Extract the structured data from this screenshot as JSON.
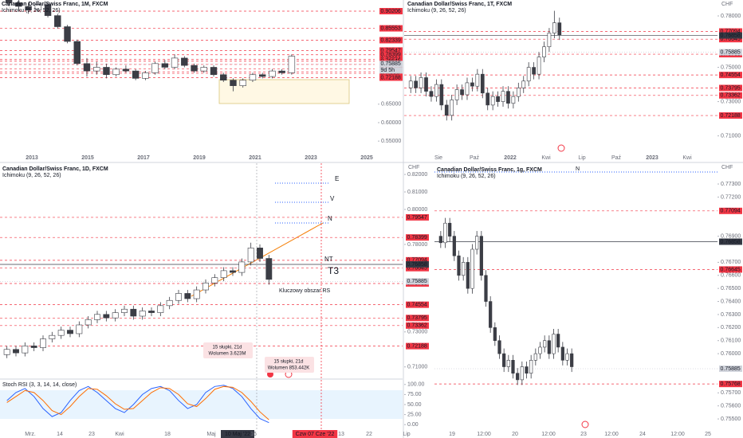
{
  "chart_data": [
    {
      "type": "candlestick",
      "title": "Canadian Dollar/Swiss Franc, 1M, FXCM",
      "indicator": "Ichimoku (9, 26, 52, 26)",
      "open": [
        0.935,
        0.925,
        0.915,
        0.905,
        0.92,
        0.89,
        0.86,
        0.82,
        0.76,
        0.74,
        0.75,
        0.73,
        0.745,
        0.74,
        0.72,
        0.735,
        0.76,
        0.75,
        0.775,
        0.755,
        0.74,
        0.75,
        0.73,
        0.715,
        0.7,
        0.715,
        0.73,
        0.725,
        0.74,
        0.735
      ],
      "high": [
        0.945,
        0.935,
        0.925,
        0.93,
        0.925,
        0.895,
        0.865,
        0.825,
        0.775,
        0.765,
        0.76,
        0.75,
        0.755,
        0.745,
        0.74,
        0.765,
        0.77,
        0.785,
        0.78,
        0.76,
        0.755,
        0.755,
        0.735,
        0.72,
        0.72,
        0.735,
        0.735,
        0.745,
        0.745,
        0.785
      ],
      "low": [
        0.915,
        0.905,
        0.895,
        0.9,
        0.885,
        0.855,
        0.815,
        0.755,
        0.725,
        0.73,
        0.72,
        0.725,
        0.735,
        0.715,
        0.715,
        0.73,
        0.745,
        0.745,
        0.75,
        0.735,
        0.735,
        0.725,
        0.71,
        0.685,
        0.695,
        0.71,
        0.72,
        0.72,
        0.73,
        0.73
      ],
      "close": [
        0.925,
        0.915,
        0.905,
        0.92,
        0.89,
        0.86,
        0.82,
        0.76,
        0.74,
        0.75,
        0.73,
        0.745,
        0.74,
        0.72,
        0.735,
        0.76,
        0.75,
        0.775,
        0.755,
        0.74,
        0.75,
        0.73,
        0.715,
        0.7,
        0.715,
        0.73,
        0.725,
        0.74,
        0.735,
        0.78
      ],
      "up_color": "#ffffff",
      "down_color": "#3b3d45",
      "ylim": [
        0.5223,
        0.9323
      ],
      "yticks": [
        {
          "value": 0.65,
          "label": "0.65000"
        },
        {
          "value": 0.6,
          "label": "0.60000"
        },
        {
          "value": 0.55,
          "label": "0.55000"
        }
      ],
      "levels": [
        0.90206,
        0.85553,
        0.82339,
        0.79547,
        0.78399,
        0.77094,
        0.76645,
        0.75768,
        0.74554,
        0.73795,
        0.73362,
        0.72188
      ],
      "level_color": "#f23645",
      "last_price": 0.75885,
      "last_color": "#d1d4dc",
      "countdown": "9d 5h",
      "x_labels": [
        "2013",
        "2015",
        "2017",
        "2019",
        "2021",
        "2023",
        "2025"
      ]
    },
    {
      "type": "candlestick",
      "title": "Canadian Dollar/Swiss Franc, 1T, FXCM",
      "indicator": "Ichimoku (9, 26, 52, 26)",
      "currency": "CHF",
      "open": [
        0.738,
        0.742,
        0.738,
        0.744,
        0.736,
        0.733,
        0.74,
        0.728,
        0.722,
        0.731,
        0.737,
        0.734,
        0.741,
        0.739,
        0.746,
        0.735,
        0.728,
        0.733,
        0.73,
        0.736,
        0.729,
        0.733,
        0.738,
        0.742,
        0.75,
        0.746,
        0.756,
        0.762,
        0.77,
        0.776
      ],
      "high": [
        0.745,
        0.745,
        0.747,
        0.747,
        0.739,
        0.743,
        0.743,
        0.731,
        0.734,
        0.74,
        0.74,
        0.744,
        0.744,
        0.749,
        0.749,
        0.738,
        0.736,
        0.736,
        0.739,
        0.739,
        0.736,
        0.741,
        0.745,
        0.753,
        0.753,
        0.759,
        0.765,
        0.773,
        0.783,
        0.779
      ],
      "low": [
        0.735,
        0.735,
        0.735,
        0.733,
        0.73,
        0.73,
        0.725,
        0.719,
        0.719,
        0.728,
        0.731,
        0.731,
        0.736,
        0.736,
        0.732,
        0.725,
        0.725,
        0.727,
        0.727,
        0.726,
        0.726,
        0.73,
        0.735,
        0.739,
        0.743,
        0.743,
        0.753,
        0.759,
        0.767,
        0.766
      ],
      "close": [
        0.742,
        0.738,
        0.744,
        0.736,
        0.733,
        0.74,
        0.728,
        0.722,
        0.731,
        0.737,
        0.734,
        0.741,
        0.739,
        0.746,
        0.735,
        0.728,
        0.733,
        0.73,
        0.736,
        0.729,
        0.733,
        0.738,
        0.742,
        0.75,
        0.746,
        0.756,
        0.762,
        0.77,
        0.776,
        0.769
      ],
      "up_color": "#ffffff",
      "down_color": "#3b3d45",
      "ylim": [
        0.701,
        0.7893
      ],
      "yticks": [
        {
          "value": 0.78,
          "label": "0.78000"
        },
        {
          "value": 0.75,
          "label": "0.75000"
        },
        {
          "value": 0.73,
          "label": "0.73000"
        },
        {
          "value": 0.71,
          "label": "0.71000"
        }
      ],
      "levels": [
        0.77094,
        0.76645,
        0.75768,
        0.74554,
        0.73795,
        0.73362,
        0.72188
      ],
      "level_color": "#f23645",
      "mark_price": 0.76858,
      "mark_color": "#363a45",
      "last_price": 0.75885,
      "last_color": "#d1d4dc",
      "x_labels": [
        "Sie",
        "Paź",
        "2022",
        "Kwi",
        "Lip",
        "Paź",
        "2023",
        "Kwi"
      ]
    },
    {
      "type": "candlestick",
      "title": "Canadian Dollar/Swiss Franc, 1D, FXCM",
      "indicator": "Ichimoku (9, 26, 52, 26)",
      "currency": "CHF",
      "open": [
        0.717,
        0.72,
        0.718,
        0.722,
        0.721,
        0.726,
        0.728,
        0.731,
        0.729,
        0.734,
        0.737,
        0.74,
        0.738,
        0.741,
        0.743,
        0.739,
        0.742,
        0.741,
        0.745,
        0.748,
        0.752,
        0.749,
        0.754,
        0.758,
        0.761,
        0.765,
        0.764,
        0.77,
        0.778,
        0.772
      ],
      "high": [
        0.722,
        0.722,
        0.724,
        0.724,
        0.728,
        0.73,
        0.733,
        0.733,
        0.736,
        0.739,
        0.742,
        0.742,
        0.743,
        0.745,
        0.745,
        0.744,
        0.744,
        0.747,
        0.75,
        0.754,
        0.754,
        0.756,
        0.76,
        0.763,
        0.767,
        0.767,
        0.772,
        0.781,
        0.78,
        0.774
      ],
      "low": [
        0.715,
        0.716,
        0.716,
        0.719,
        0.719,
        0.724,
        0.726,
        0.727,
        0.727,
        0.732,
        0.735,
        0.736,
        0.736,
        0.739,
        0.737,
        0.737,
        0.739,
        0.739,
        0.743,
        0.746,
        0.747,
        0.747,
        0.752,
        0.756,
        0.759,
        0.762,
        0.762,
        0.768,
        0.77,
        0.757
      ],
      "close": [
        0.72,
        0.718,
        0.722,
        0.721,
        0.726,
        0.728,
        0.731,
        0.729,
        0.734,
        0.737,
        0.74,
        0.738,
        0.741,
        0.743,
        0.739,
        0.742,
        0.741,
        0.745,
        0.748,
        0.752,
        0.749,
        0.754,
        0.758,
        0.761,
        0.765,
        0.764,
        0.77,
        0.778,
        0.772,
        0.76
      ],
      "up_color": "#ffffff",
      "down_color": "#3b3d45",
      "ylim": [
        0.7035,
        0.8264
      ],
      "yticks": [
        {
          "value": 0.82,
          "label": "0.82000"
        },
        {
          "value": 0.81,
          "label": "0.81000"
        },
        {
          "value": 0.8,
          "label": "0.80000"
        },
        {
          "value": 0.78,
          "label": "0.78000"
        },
        {
          "value": 0.73,
          "label": "0.73000"
        },
        {
          "value": 0.71,
          "label": "0.71000"
        }
      ],
      "levels": [
        0.79547,
        0.78399,
        0.77094,
        0.76645,
        0.75768,
        0.74554,
        0.73795,
        0.73362,
        0.72188
      ],
      "level_color": "#f23645",
      "mark_price": 0.76858,
      "mark_color": "#363a45",
      "last_price": 0.75885,
      "last_color": "#d1d4dc",
      "x_labels": [
        "Mrz.",
        "14",
        "23",
        "Kwi",
        "18",
        "Maj",
        "10 Maj '22",
        "16",
        "Czw 07 Cze '22",
        "13",
        "22",
        "Lip"
      ],
      "annotations": [
        {
          "text": "E",
          "color": "#2962ff"
        },
        {
          "text": "V",
          "color": "#2962ff"
        },
        {
          "text": "N",
          "color": "#2962ff"
        },
        {
          "text": "NT",
          "color": "#2962ff"
        },
        {
          "text": "T3",
          "color": "#f23645"
        },
        {
          "text": "Kluczowy obszar RS",
          "color": "#f23645"
        }
      ],
      "notes": [
        [
          "15 słupki, 21d",
          "Wolumen 3.623M"
        ],
        [
          "15 słupki, 21d",
          "Wolumen 853.442K"
        ]
      ],
      "stoch": {
        "title": "Stoch RSI (3, 3, 14, 14, close)",
        "ylim": [
          -13.5,
          111.5
        ],
        "yticks": [
          {
            "value": 100,
            "label": "100.00"
          },
          {
            "value": 75,
            "label": "75.00"
          },
          {
            "value": 50,
            "label": "50.00"
          },
          {
            "value": 25,
            "label": "25.00"
          },
          {
            "value": 0,
            "label": "0.00"
          }
        ],
        "series": [
          {
            "color": "#2962ff",
            "values": [
              60,
              80,
              90,
              70,
              40,
              20,
              30,
              60,
              85,
              95,
              80,
              60,
              40,
              30,
              50,
              75,
              90,
              95,
              85,
              60,
              40,
              50,
              80,
              95,
              98,
              90,
              70,
              40,
              15,
              5
            ]
          },
          {
            "color": "#ff6d00",
            "values": [
              55,
              70,
              85,
              80,
              60,
              35,
              25,
              45,
              70,
              90,
              88,
              72,
              52,
              38,
              40,
              60,
              80,
              92,
              90,
              75,
              52,
              45,
              65,
              88,
              95,
              93,
              80,
              58,
              32,
              12
            ]
          }
        ]
      }
    },
    {
      "type": "candlestick",
      "title": "Canadian Dollar/Swiss Franc, 1g, FXCM",
      "indicator": "Ichimoku (9, 26, 52, 26)",
      "currency": "CHF",
      "open": [
        0.769,
        0.7685,
        0.77,
        0.769,
        0.7675,
        0.766,
        0.767,
        0.765,
        0.768,
        0.769,
        0.766,
        0.764,
        0.762,
        0.761,
        0.76,
        0.759,
        0.7595,
        0.7585,
        0.758,
        0.759,
        0.7585,
        0.7595,
        0.76,
        0.7605,
        0.761,
        0.76,
        0.7615,
        0.7605,
        0.7595,
        0.76
      ],
      "high": [
        0.7694,
        0.7704,
        0.7704,
        0.7694,
        0.7679,
        0.7674,
        0.7674,
        0.7684,
        0.7694,
        0.7694,
        0.7664,
        0.7644,
        0.7624,
        0.7614,
        0.7604,
        0.7599,
        0.7599,
        0.7589,
        0.7594,
        0.7594,
        0.7599,
        0.7604,
        0.7609,
        0.7614,
        0.7614,
        0.7619,
        0.7619,
        0.7609,
        0.7604,
        0.7604
      ],
      "low": [
        0.7681,
        0.7681,
        0.7686,
        0.7671,
        0.7656,
        0.7656,
        0.7646,
        0.7646,
        0.7676,
        0.7656,
        0.7636,
        0.7616,
        0.7606,
        0.7596,
        0.7586,
        0.7586,
        0.7581,
        0.7576,
        0.7576,
        0.7581,
        0.7581,
        0.7591,
        0.7596,
        0.7601,
        0.7596,
        0.7596,
        0.7601,
        0.7591,
        0.7591,
        0.7586
      ],
      "close": [
        0.7685,
        0.77,
        0.769,
        0.7675,
        0.766,
        0.767,
        0.765,
        0.768,
        0.769,
        0.766,
        0.764,
        0.762,
        0.761,
        0.76,
        0.759,
        0.7595,
        0.7585,
        0.758,
        0.759,
        0.7585,
        0.7595,
        0.76,
        0.7605,
        0.761,
        0.76,
        0.7615,
        0.7605,
        0.7595,
        0.76,
        0.759
      ],
      "up_color": "#ffffff",
      "down_color": "#3b3d45",
      "ylim": [
        0.75415,
        0.77459
      ],
      "yticks": [
        {
          "value": 0.773,
          "label": "0.77300"
        },
        {
          "value": 0.772,
          "label": "0.77200"
        },
        {
          "value": 0.769,
          "label": "0.76900"
        },
        {
          "value": 0.767,
          "label": "0.76700"
        },
        {
          "value": 0.766,
          "label": "0.76600"
        },
        {
          "value": 0.765,
          "label": "0.76500"
        },
        {
          "value": 0.764,
          "label": "0.76400"
        },
        {
          "value": 0.763,
          "label": "0.76300"
        },
        {
          "value": 0.762,
          "label": "0.76200"
        },
        {
          "value": 0.761,
          "label": "0.76100"
        },
        {
          "value": 0.76,
          "label": "0.76000"
        },
        {
          "value": 0.757,
          "label": "0.75700"
        },
        {
          "value": 0.756,
          "label": "0.75600"
        },
        {
          "value": 0.755,
          "label": "0.75500"
        }
      ],
      "levels": [
        0.77094,
        0.76645,
        0.75768
      ],
      "level_color": "#f23645",
      "mark_price": 0.76858,
      "mark_color": "#363a45",
      "last_price": 0.75885,
      "last_color": "#d1d4dc",
      "x_labels": [
        "19",
        "12:00",
        "20",
        "12:00",
        "23",
        "12:00",
        "24",
        "12:00",
        "25"
      ],
      "annotations": [
        {
          "text": "N",
          "color": "#2962ff"
        }
      ]
    }
  ]
}
